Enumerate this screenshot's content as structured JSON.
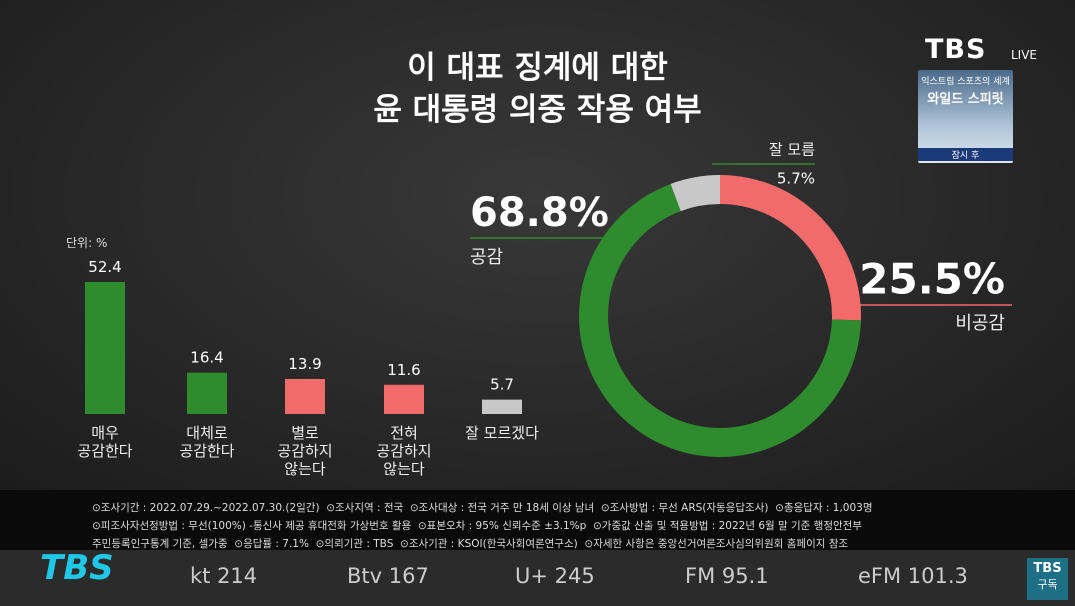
{
  "header": {
    "title_lines": [
      "이 대표 징계에 대한",
      "윤 대통령 의중 작용 여부"
    ],
    "logo": "TBS",
    "live": "LIVE"
  },
  "promo": {
    "top": "익스트림 스포츠의 세계",
    "title": "와일드 스피릿",
    "badge": "잠시 후"
  },
  "chart_data": [
    {
      "type": "bar",
      "unit_label": "단위: %",
      "categories": [
        "매우\n공감한다",
        "대체로\n공감한다",
        "별로\n공감하지\n않는다",
        "전혀\n공감하지\n않는다",
        "잘 모르겠다"
      ],
      "values": [
        52.4,
        16.4,
        13.9,
        11.6,
        5.7
      ],
      "colors": [
        "#2e8b2e",
        "#2e8b2e",
        "#f26b6b",
        "#f26b6b",
        "#c8c8c8"
      ]
    },
    {
      "type": "donut",
      "categories": [
        "비공감",
        "공감",
        "잘 모름"
      ],
      "values": [
        25.5,
        68.8,
        5.7
      ],
      "value_labels": [
        "25.5%",
        "68.8%",
        "5.7%"
      ],
      "colors": [
        "#f26b6b",
        "#2e8b2e",
        "#c8c8c8"
      ]
    }
  ],
  "footer": {
    "lines": [
      "⊙조사기간 : 2022.07.29.~2022.07.30.(2일간)  ⊙조사지역 : 전국  ⊙조사대상 : 전국 거주 만 18세 이상 남녀  ⊙조사방법 : 무선 ARS(자동응답조사)  ⊙총응답자 : 1,003명",
      "⊙피조사자선정방법 : 무선(100%) -통신사 제공 휴대전화 가상번호 활용  ⊙표본오차 : 95% 신뢰수준 ±3.1%p  ⊙가중값 산출 및 적용방법 : 2022년 6월 말 기준 행정안전부",
      "주민등록인구통계 기준, 셀가중  ⊙응답률 : 7.1%  ⊙의뢰기관 : TBS  ⊙조사기관 : KSOI(한국사회여론연구소)  ⊙자세한 사항은 중앙선거여론조사심의위원회 홈페이지 참조"
    ]
  },
  "channels": [
    "kt 214",
    "Btv 167",
    "U+ 245",
    "FM 95.1",
    "eFM 101.3"
  ],
  "corner": {
    "logo": "TBS",
    "subscribe": "구독"
  }
}
